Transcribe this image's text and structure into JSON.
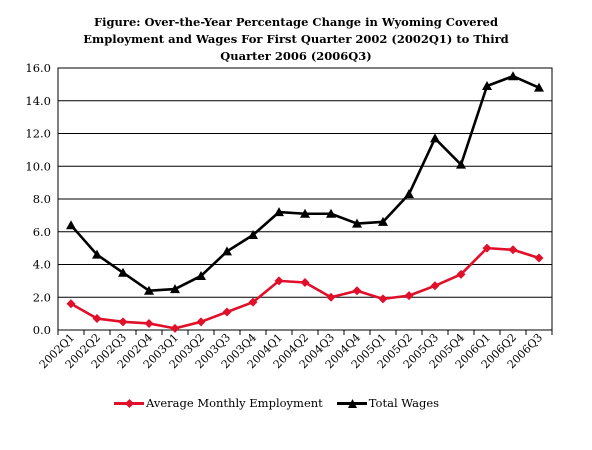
{
  "chart_data": {
    "type": "line",
    "title_lines": [
      "Figure: Over-the-Year Percentage Change in Wyoming Covered",
      "Employment and Wages For First Quarter 2002 (2002Q1) to Third",
      "Quarter 2006 (2006Q3)"
    ],
    "categories": [
      "2002Q1",
      "2002Q2",
      "2002Q3",
      "2002Q4",
      "2003Q1",
      "2003Q2",
      "2003Q3",
      "2003Q4",
      "2004Q1",
      "2004Q2",
      "2004Q3",
      "2004Q4",
      "2005Q1",
      "2005Q2",
      "2005Q3",
      "2005Q4",
      "2006Q1",
      "2006Q2",
      "2006Q3"
    ],
    "y_ticks": [
      "0.0",
      "2.0",
      "4.0",
      "6.0",
      "8.0",
      "10.0",
      "12.0",
      "14.0",
      "16.0"
    ],
    "ylim": [
      0,
      16
    ],
    "grid": "horizontal",
    "legend_position": "bottom",
    "series": [
      {
        "name": "Average Monthly Employment",
        "color": "#e0102a",
        "marker": "diamond",
        "values": [
          1.6,
          0.7,
          0.5,
          0.4,
          0.1,
          0.5,
          1.1,
          1.7,
          3.0,
          2.9,
          2.0,
          2.4,
          1.9,
          2.1,
          2.7,
          3.4,
          5.0,
          4.9,
          4.4
        ]
      },
      {
        "name": "Total Wages",
        "color": "#000000",
        "marker": "triangle",
        "values": [
          6.4,
          4.6,
          3.5,
          2.4,
          2.5,
          3.3,
          4.8,
          5.8,
          7.2,
          7.1,
          7.1,
          6.5,
          6.6,
          8.3,
          11.7,
          10.1,
          14.9,
          15.5,
          14.8
        ]
      }
    ]
  }
}
